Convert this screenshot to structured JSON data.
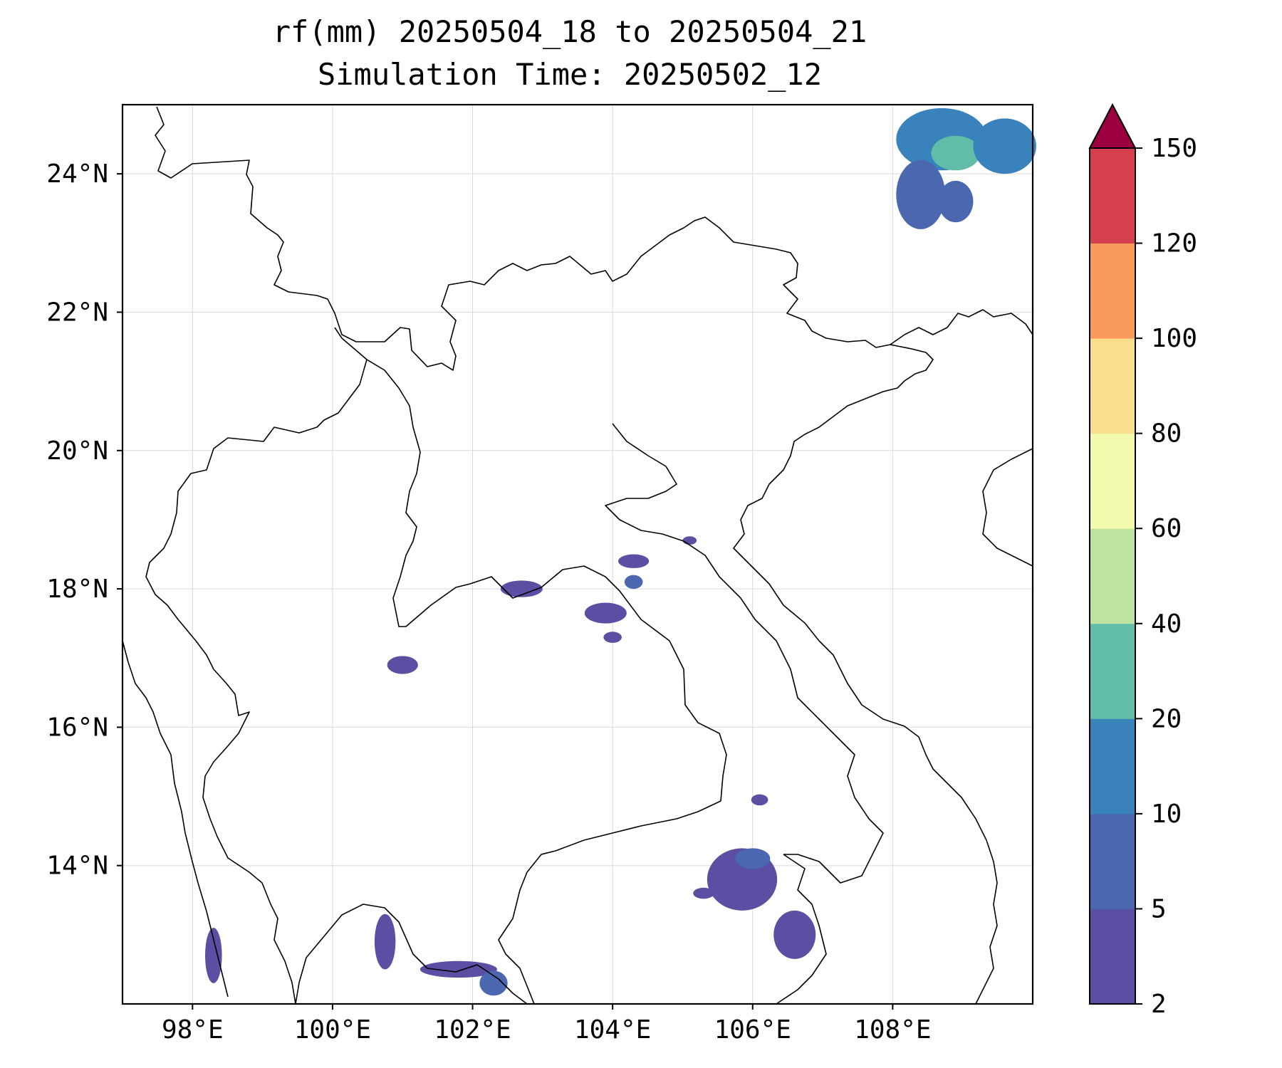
{
  "title": {
    "line1": "rf(mm) 20250504_18 to 20250504_21",
    "line2": "Simulation Time: 20250502_12"
  },
  "map": {
    "lon_range": [
      97.0,
      110.0
    ],
    "lat_range": [
      12.0,
      25.0
    ],
    "x_ticks": [
      {
        "lon": 98,
        "label": "98°E"
      },
      {
        "lon": 100,
        "label": "100°E"
      },
      {
        "lon": 102,
        "label": "102°E"
      },
      {
        "lon": 104,
        "label": "104°E"
      },
      {
        "lon": 106,
        "label": "106°E"
      },
      {
        "lon": 108,
        "label": "108°E"
      }
    ],
    "y_ticks": [
      {
        "lat": 24,
        "label": "24°N"
      },
      {
        "lat": 22,
        "label": "22°N"
      },
      {
        "lat": 20,
        "label": "20°N"
      },
      {
        "lat": 18,
        "label": "18°N"
      },
      {
        "lat": 16,
        "label": "16°N"
      },
      {
        "lat": 14,
        "label": "14°N"
      }
    ],
    "grid": true,
    "rain_cells": [
      {
        "lon": 108.7,
        "lat": 24.5,
        "rx": 0.65,
        "ry": 0.45,
        "level": 3
      },
      {
        "lon": 108.9,
        "lat": 24.3,
        "rx": 0.35,
        "ry": 0.25,
        "level": 4
      },
      {
        "lon": 108.4,
        "lat": 23.7,
        "rx": 0.35,
        "ry": 0.5,
        "level": 2
      },
      {
        "lon": 108.9,
        "lat": 23.6,
        "rx": 0.25,
        "ry": 0.3,
        "level": 2
      },
      {
        "lon": 109.6,
        "lat": 24.4,
        "rx": 0.45,
        "ry": 0.4,
        "level": 3
      },
      {
        "lon": 102.7,
        "lat": 18.0,
        "rx": 0.3,
        "ry": 0.12,
        "level": 1
      },
      {
        "lon": 104.3,
        "lat": 18.4,
        "rx": 0.22,
        "ry": 0.1,
        "level": 1
      },
      {
        "lon": 103.9,
        "lat": 17.65,
        "rx": 0.3,
        "ry": 0.15,
        "level": 1
      },
      {
        "lon": 104.0,
        "lat": 17.3,
        "rx": 0.13,
        "ry": 0.08,
        "level": 1
      },
      {
        "lon": 104.3,
        "lat": 18.1,
        "rx": 0.13,
        "ry": 0.1,
        "level": 2
      },
      {
        "lon": 101.0,
        "lat": 16.9,
        "rx": 0.22,
        "ry": 0.13,
        "level": 1
      },
      {
        "lon": 105.1,
        "lat": 18.7,
        "rx": 0.1,
        "ry": 0.06,
        "level": 1
      },
      {
        "lon": 106.1,
        "lat": 14.95,
        "rx": 0.12,
        "ry": 0.08,
        "level": 1
      },
      {
        "lon": 105.85,
        "lat": 13.8,
        "rx": 0.5,
        "ry": 0.45,
        "level": 1
      },
      {
        "lon": 106.0,
        "lat": 14.1,
        "rx": 0.25,
        "ry": 0.15,
        "level": 2
      },
      {
        "lon": 106.6,
        "lat": 13.0,
        "rx": 0.3,
        "ry": 0.35,
        "level": 1
      },
      {
        "lon": 105.3,
        "lat": 13.6,
        "rx": 0.15,
        "ry": 0.08,
        "level": 1
      },
      {
        "lon": 101.8,
        "lat": 12.5,
        "rx": 0.55,
        "ry": 0.12,
        "level": 1
      },
      {
        "lon": 102.3,
        "lat": 12.3,
        "rx": 0.2,
        "ry": 0.18,
        "level": 2
      },
      {
        "lon": 100.75,
        "lat": 12.9,
        "rx": 0.15,
        "ry": 0.4,
        "level": 1
      },
      {
        "lon": 98.3,
        "lat": 12.7,
        "rx": 0.12,
        "ry": 0.4,
        "level": 1
      }
    ]
  },
  "colorbar": {
    "levels": [
      "2",
      "5",
      "10",
      "20",
      "40",
      "60",
      "80",
      "100",
      "120",
      "150"
    ],
    "colors": [
      "#5a4fa2",
      "#4a67b0",
      "#3a82bb",
      "#62bda8",
      "#bde3a0",
      "#f3f9ad",
      "#fbde8c",
      "#f89b5a",
      "#d63f4e",
      "#9c003f"
    ]
  }
}
